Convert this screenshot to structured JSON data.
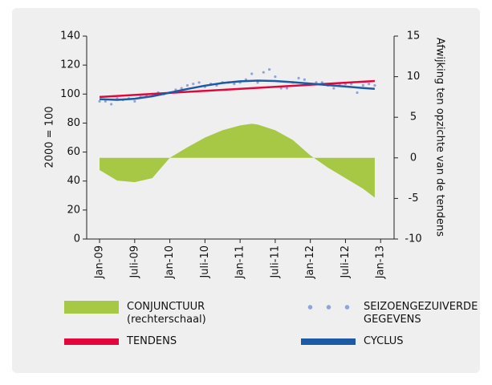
{
  "chart_data": {
    "type": "line",
    "xlim": [
      -2.2,
      50.3
    ],
    "xticks": [
      {
        "value": 0,
        "label": "Jan-09"
      },
      {
        "value": 6,
        "label": "Juli-09"
      },
      {
        "value": 12,
        "label": "Jan-10"
      },
      {
        "value": 18,
        "label": "Juli-10"
      },
      {
        "value": 24,
        "label": "Jan-11"
      },
      {
        "value": 30,
        "label": "Juli-11"
      },
      {
        "value": 36,
        "label": "Jan-12"
      },
      {
        "value": 42,
        "label": "Juli-12"
      },
      {
        "value": 48,
        "label": "Jan-13"
      }
    ],
    "ylim": [
      0,
      140
    ],
    "yticks": [
      0,
      20,
      40,
      60,
      80,
      100,
      120,
      140
    ],
    "ylabel": "2000 = 100",
    "y2lim": [
      -10,
      15
    ],
    "y2ticks": [
      -10,
      -5,
      0,
      5,
      10,
      15
    ],
    "y2label": "Afwijking ten opzichte van de tendens",
    "series": [
      {
        "name": "CONJUNCTUUR (rechterschaal)",
        "type": "area",
        "axis": "y2",
        "color": "#a6c845",
        "x": [
          0,
          3,
          6,
          9,
          12,
          15,
          18,
          21,
          24,
          26,
          27,
          30,
          33,
          36,
          39,
          42,
          45,
          47
        ],
        "values": [
          -1.5,
          -2.8,
          -3.0,
          -2.5,
          0,
          1.3,
          2.5,
          3.4,
          4.0,
          4.2,
          4.1,
          3.4,
          2.2,
          0.3,
          -1.2,
          -2.5,
          -3.8,
          -4.9
        ]
      },
      {
        "name": "SEIZOENGEZUIVERDE GEGEVENS",
        "type": "scatter",
        "color": "#8ea6d6",
        "x": [
          0,
          1,
          2,
          3,
          4,
          5,
          6,
          7,
          8,
          9,
          10,
          11,
          12,
          13,
          14,
          15,
          16,
          17,
          18,
          19,
          20,
          21,
          22,
          23,
          24,
          25,
          26,
          27,
          28,
          29,
          30,
          31,
          32,
          33,
          34,
          35,
          36,
          37,
          38,
          39,
          40,
          41,
          42,
          43,
          44,
          45,
          46,
          47
        ],
        "values": [
          95,
          95,
          93,
          97,
          96,
          97,
          95,
          98,
          99,
          100,
          101,
          100,
          101,
          103,
          104,
          106,
          107,
          108,
          105,
          107,
          106,
          108,
          108,
          107,
          108,
          110,
          114,
          108,
          115,
          117,
          112,
          104,
          104,
          108,
          111,
          110,
          107,
          108,
          108,
          106,
          104,
          107,
          107,
          107,
          101,
          106,
          107,
          106
        ]
      },
      {
        "name": "TENDENS",
        "type": "line",
        "color": "#e2063d",
        "x": [
          0,
          47
        ],
        "values": [
          98,
          109
        ]
      },
      {
        "name": "CYCLUS",
        "type": "line",
        "color": "#1d5aa6",
        "x": [
          0,
          3,
          6,
          9,
          12,
          15,
          18,
          21,
          24,
          27,
          30,
          33,
          36,
          39,
          42,
          45,
          47
        ],
        "values": [
          96.5,
          96,
          96.8,
          98.5,
          101,
          103.5,
          105.8,
          107.6,
          108.8,
          109.3,
          109,
          108.2,
          107.2,
          106.2,
          105.2,
          104.2,
          103.6
        ]
      }
    ]
  }
}
